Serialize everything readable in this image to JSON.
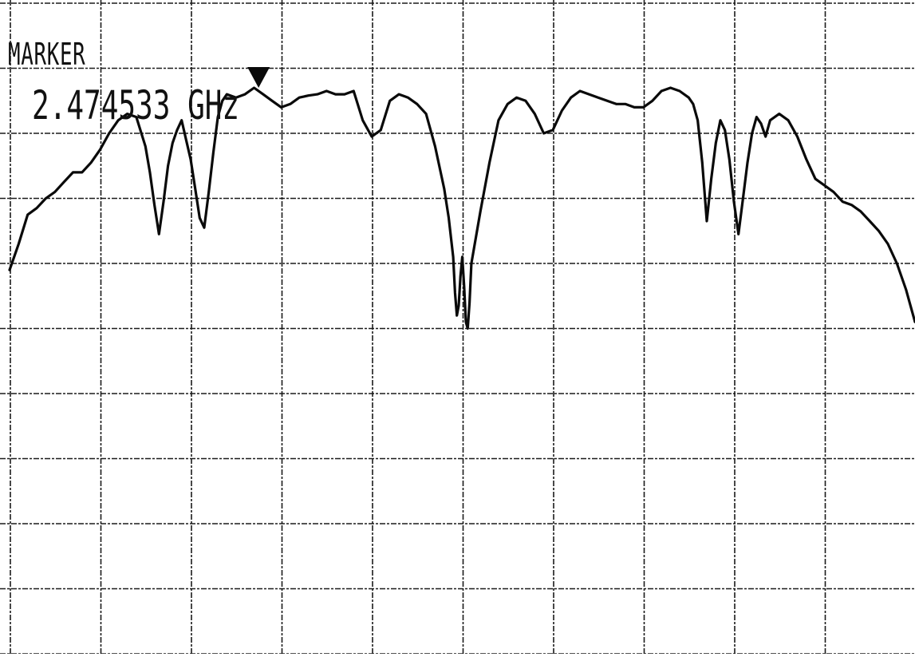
{
  "chart_data": {
    "type": "line",
    "title": "",
    "xlabel": "",
    "ylabel": "",
    "grid": true,
    "grid_divisions": {
      "x": 10,
      "y": 10
    },
    "xlim": [
      0,
      100
    ],
    "ylim": [
      0,
      100
    ],
    "marker": {
      "label": "MARKER",
      "frequency": "2.474533 GHz",
      "x": 27.5,
      "y": 87.0
    },
    "series": [
      {
        "x": [
          0,
          1,
          2,
          3,
          4,
          5,
          6,
          7,
          8,
          9,
          10,
          11,
          12,
          13,
          14,
          15,
          15.5,
          16,
          16.5,
          17,
          17.5,
          18,
          18.5,
          19,
          19.5,
          20,
          20.5,
          21,
          21.5,
          22,
          22.5,
          23,
          23.5,
          24,
          25,
          26,
          27,
          28,
          29,
          30,
          31,
          32,
          33,
          34,
          35,
          36,
          37,
          38,
          39,
          40,
          41,
          42,
          43,
          44,
          45,
          46,
          47,
          48,
          48.5,
          49,
          49.2,
          49.4,
          49.6,
          49.8,
          50.0,
          50.2,
          50.4,
          50.6,
          50.8,
          51,
          52,
          53,
          54,
          55,
          56,
          57,
          58,
          59,
          60,
          61,
          62,
          63,
          64,
          65,
          66,
          67,
          68,
          69,
          70,
          71,
          72,
          73,
          74,
          75,
          75.5,
          76,
          76.5,
          77,
          77.5,
          78,
          78.5,
          79,
          79.5,
          80,
          80.5,
          81,
          81.5,
          82,
          82.5,
          83,
          83.5,
          84,
          85,
          86,
          87,
          88,
          89,
          90,
          91,
          92,
          93,
          94,
          95,
          96,
          97,
          98,
          99,
          100
        ],
        "y": [
          59.0,
          63.0,
          67.5,
          68.5,
          70.0,
          71.0,
          72.5,
          74.0,
          74.0,
          75.5,
          77.5,
          80.0,
          82.0,
          83.0,
          82.5,
          78.0,
          74.0,
          69.0,
          64.5,
          69.5,
          75.0,
          78.5,
          80.5,
          82.0,
          79.0,
          76.0,
          71.5,
          67.0,
          65.5,
          71.0,
          77.0,
          82.5,
          85.0,
          86.0,
          85.5,
          86.0,
          87.0,
          86.0,
          85.0,
          84.0,
          84.5,
          85.5,
          85.8,
          86.0,
          86.5,
          86.0,
          86.0,
          86.5,
          82.0,
          79.5,
          80.5,
          85.0,
          86.0,
          85.5,
          84.5,
          83.0,
          78.0,
          71.5,
          67.0,
          61.0,
          55.5,
          52.0,
          53.5,
          58.0,
          61.0,
          56.5,
          51.0,
          50.0,
          54.0,
          60.0,
          68.0,
          75.5,
          82.0,
          84.5,
          85.5,
          85.0,
          83.0,
          80.0,
          80.5,
          83.5,
          85.5,
          86.5,
          86.0,
          85.5,
          85.0,
          84.5,
          84.5,
          84.0,
          84.0,
          85.0,
          86.5,
          87.0,
          86.5,
          85.5,
          84.5,
          82.0,
          75.5,
          66.5,
          73.0,
          78.5,
          82.0,
          80.5,
          76.0,
          69.5,
          64.5,
          70.0,
          75.5,
          80.0,
          82.5,
          81.5,
          79.5,
          82.0,
          83.0,
          82.0,
          79.5,
          76.0,
          73.0,
          72.0,
          71.0,
          69.5,
          69.0,
          68.0,
          66.5,
          65.0,
          63.0,
          60.0,
          56.0,
          51.0
        ]
      }
    ]
  }
}
